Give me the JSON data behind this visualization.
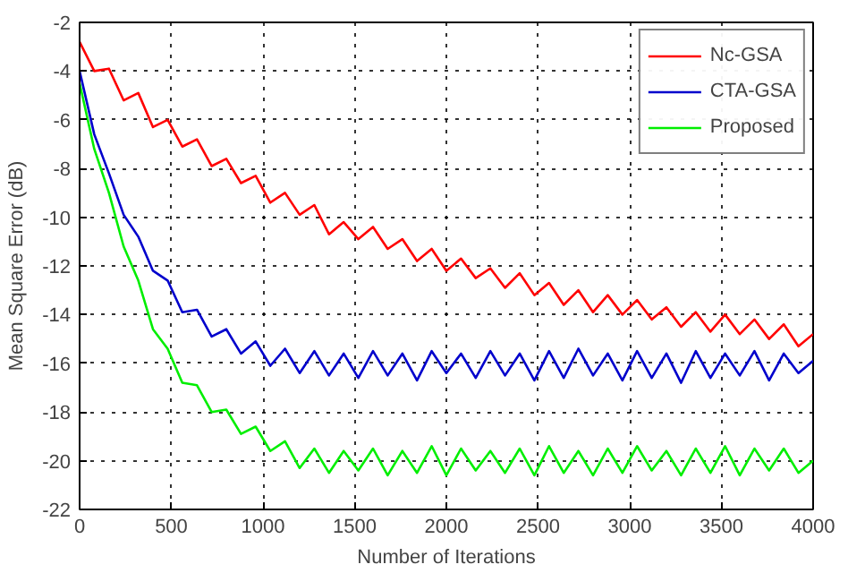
{
  "chart_data": {
    "type": "line",
    "xlabel": "Number of Iterations",
    "ylabel": "Mean Square Error (dB)",
    "x": [
      0,
      80,
      160,
      240,
      320,
      400,
      480,
      560,
      640,
      720,
      800,
      880,
      960,
      1040,
      1120,
      1200,
      1280,
      1360,
      1440,
      1520,
      1600,
      1680,
      1760,
      1840,
      1920,
      2000,
      2080,
      2160,
      2240,
      2320,
      2400,
      2480,
      2560,
      2640,
      2720,
      2800,
      2880,
      2960,
      3040,
      3120,
      3200,
      3280,
      3360,
      3440,
      3520,
      3600,
      3680,
      3760,
      3840,
      3920,
      4000
    ],
    "series": [
      {
        "name": "Nc-GSA",
        "color": "#ff0000",
        "values": [
          -2.8,
          -4.0,
          -3.9,
          -5.2,
          -4.9,
          -6.3,
          -6.0,
          -7.1,
          -6.8,
          -7.9,
          -7.6,
          -8.6,
          -8.3,
          -9.4,
          -9.0,
          -9.9,
          -9.5,
          -10.7,
          -10.2,
          -10.9,
          -10.4,
          -11.3,
          -10.9,
          -11.8,
          -11.3,
          -12.2,
          -11.7,
          -12.5,
          -12.1,
          -12.9,
          -12.3,
          -13.2,
          -12.7,
          -13.6,
          -13.0,
          -13.9,
          -13.2,
          -14.0,
          -13.4,
          -14.2,
          -13.7,
          -14.5,
          -13.9,
          -14.7,
          -14.0,
          -14.8,
          -14.2,
          -15.0,
          -14.4,
          -15.3,
          -14.8
        ]
      },
      {
        "name": "CTA-GSA",
        "color": "#0000cc",
        "values": [
          -4.0,
          -6.6,
          -8.2,
          -9.9,
          -10.8,
          -12.2,
          -12.6,
          -13.9,
          -13.8,
          -14.9,
          -14.6,
          -15.6,
          -15.1,
          -16.1,
          -15.4,
          -16.4,
          -15.5,
          -16.5,
          -15.6,
          -16.6,
          -15.5,
          -16.5,
          -15.6,
          -16.7,
          -15.5,
          -16.4,
          -15.6,
          -16.6,
          -15.5,
          -16.5,
          -15.6,
          -16.7,
          -15.5,
          -16.6,
          -15.4,
          -16.5,
          -15.6,
          -16.7,
          -15.5,
          -16.6,
          -15.6,
          -16.8,
          -15.5,
          -16.6,
          -15.6,
          -16.5,
          -15.5,
          -16.7,
          -15.6,
          -16.4,
          -15.9
        ]
      },
      {
        "name": "Proposed",
        "color": "#00ee00",
        "values": [
          -4.5,
          -7.2,
          -9.0,
          -11.2,
          -12.6,
          -14.6,
          -15.4,
          -16.8,
          -16.9,
          -18.0,
          -17.9,
          -18.9,
          -18.6,
          -19.6,
          -19.2,
          -20.3,
          -19.5,
          -20.5,
          -19.6,
          -20.4,
          -19.5,
          -20.6,
          -19.6,
          -20.5,
          -19.4,
          -20.6,
          -19.5,
          -20.4,
          -19.6,
          -20.5,
          -19.5,
          -20.6,
          -19.4,
          -20.5,
          -19.6,
          -20.6,
          -19.5,
          -20.5,
          -19.4,
          -20.4,
          -19.6,
          -20.6,
          -19.5,
          -20.5,
          -19.4,
          -20.6,
          -19.5,
          -20.4,
          -19.5,
          -20.5,
          -20.0
        ]
      }
    ],
    "xlim": [
      0,
      4000
    ],
    "ylim": [
      -22,
      -2
    ],
    "xticks": [
      0,
      500,
      1000,
      1500,
      2000,
      2500,
      3000,
      3500,
      4000
    ],
    "yticks": [
      -22,
      -20,
      -18,
      -16,
      -14,
      -12,
      -10,
      -8,
      -6,
      -4,
      -2
    ],
    "grid": true,
    "legend": "top right",
    "line_style": "solid"
  }
}
